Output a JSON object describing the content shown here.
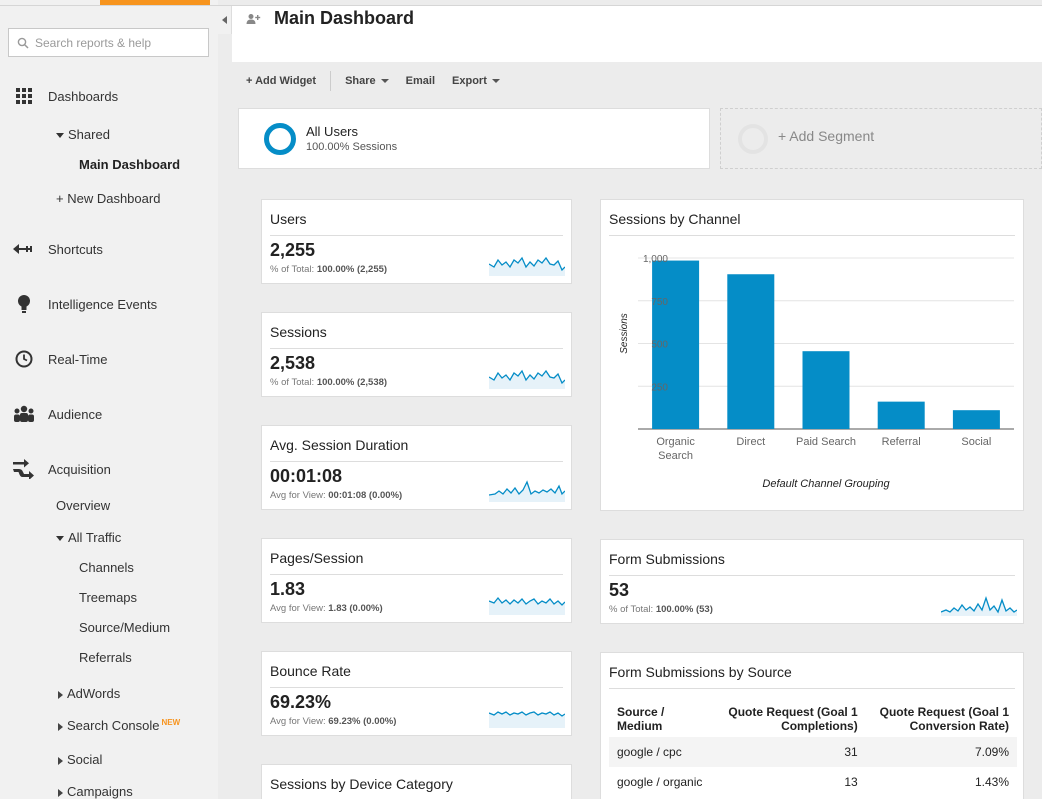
{
  "sidebar": {
    "search_placeholder": "Search reports & help",
    "dashboards": "Dashboards",
    "shared": "Shared",
    "main_dashboard": "Main Dashboard",
    "new_dashboard": "+ New Dashboard",
    "shortcuts": "Shortcuts",
    "intelligence_events": "Intelligence Events",
    "real_time": "Real-Time",
    "audience": "Audience",
    "acquisition": "Acquisition",
    "overview": "Overview",
    "all_traffic": "All Traffic",
    "channels": "Channels",
    "treemaps": "Treemaps",
    "source_medium": "Source/Medium",
    "referrals": "Referrals",
    "adwords": "AdWords",
    "search_console": "Search Console",
    "new_badge": "NEW",
    "social": "Social",
    "campaigns": "Campaigns",
    "accent_color": "#f7941e"
  },
  "header": {
    "title": "Main Dashboard"
  },
  "toolbar": {
    "add_widget": "+ Add Widget",
    "share": "Share",
    "email": "Email",
    "export": "Export"
  },
  "segment": {
    "name": "All Users",
    "sub": "100.00% Sessions",
    "add_segment": "+ Add Segment",
    "ring_color": "#058dc7"
  },
  "widgets": {
    "users": {
      "title": "Users",
      "value": "2,255",
      "sub_prefix": "% of Total:",
      "sub_value": "100.00% (2,255)"
    },
    "sessions": {
      "title": "Sessions",
      "value": "2,538",
      "sub_prefix": "% of Total:",
      "sub_value": "100.00% (2,538)"
    },
    "avg_duration": {
      "title": "Avg. Session Duration",
      "value": "00:01:08",
      "sub_prefix": "Avg for View:",
      "sub_value": "00:01:08 (0.00%)"
    },
    "pages_session": {
      "title": "Pages/Session",
      "value": "1.83",
      "sub_prefix": "Avg for View:",
      "sub_value": "1.83 (0.00%)"
    },
    "bounce_rate": {
      "title": "Bounce Rate",
      "value": "69.23%",
      "sub_prefix": "Avg for View:",
      "sub_value": "69.23% (0.00%)"
    },
    "device_category": {
      "title": "Sessions by Device Category"
    },
    "channel": {
      "title": "Sessions by Channel"
    },
    "form_submissions": {
      "title": "Form Submissions",
      "value": "53",
      "sub_prefix": "% of Total:",
      "sub_value": "100.00% (53)"
    },
    "form_by_source": {
      "title": "Form Submissions by Source",
      "col1_a": "Source /",
      "col1_b": "Medium",
      "col2_a": "Quote Request (Goal 1",
      "col2_b": "Completions)",
      "col3_a": "Quote Request (Goal 1",
      "col3_b": "Conversion Rate)",
      "rows": [
        {
          "source": "google / cpc",
          "completions": "31",
          "rate": "7.09%"
        },
        {
          "source": "google / organic",
          "completions": "13",
          "rate": "1.43%"
        }
      ]
    }
  },
  "chart_data": {
    "type": "bar",
    "title": "Sessions by Channel",
    "categories": [
      "Organic Search",
      "Direct",
      "Paid Search",
      "Referral",
      "Social"
    ],
    "category_lines": [
      [
        "Organic",
        "Search"
      ],
      [
        "Direct"
      ],
      [
        "Paid Search"
      ],
      [
        "Referral"
      ],
      [
        "Social"
      ]
    ],
    "values": [
      985,
      905,
      455,
      160,
      110
    ],
    "xlabel": "Default Channel Grouping",
    "ylabel": "Sessions",
    "yticks": [
      "1,000",
      "750",
      "500",
      "250"
    ],
    "ytick_values": [
      1000,
      750,
      500,
      250
    ],
    "ylim": [
      0,
      1000
    ],
    "bar_color": "#058dc7",
    "grid": true
  }
}
